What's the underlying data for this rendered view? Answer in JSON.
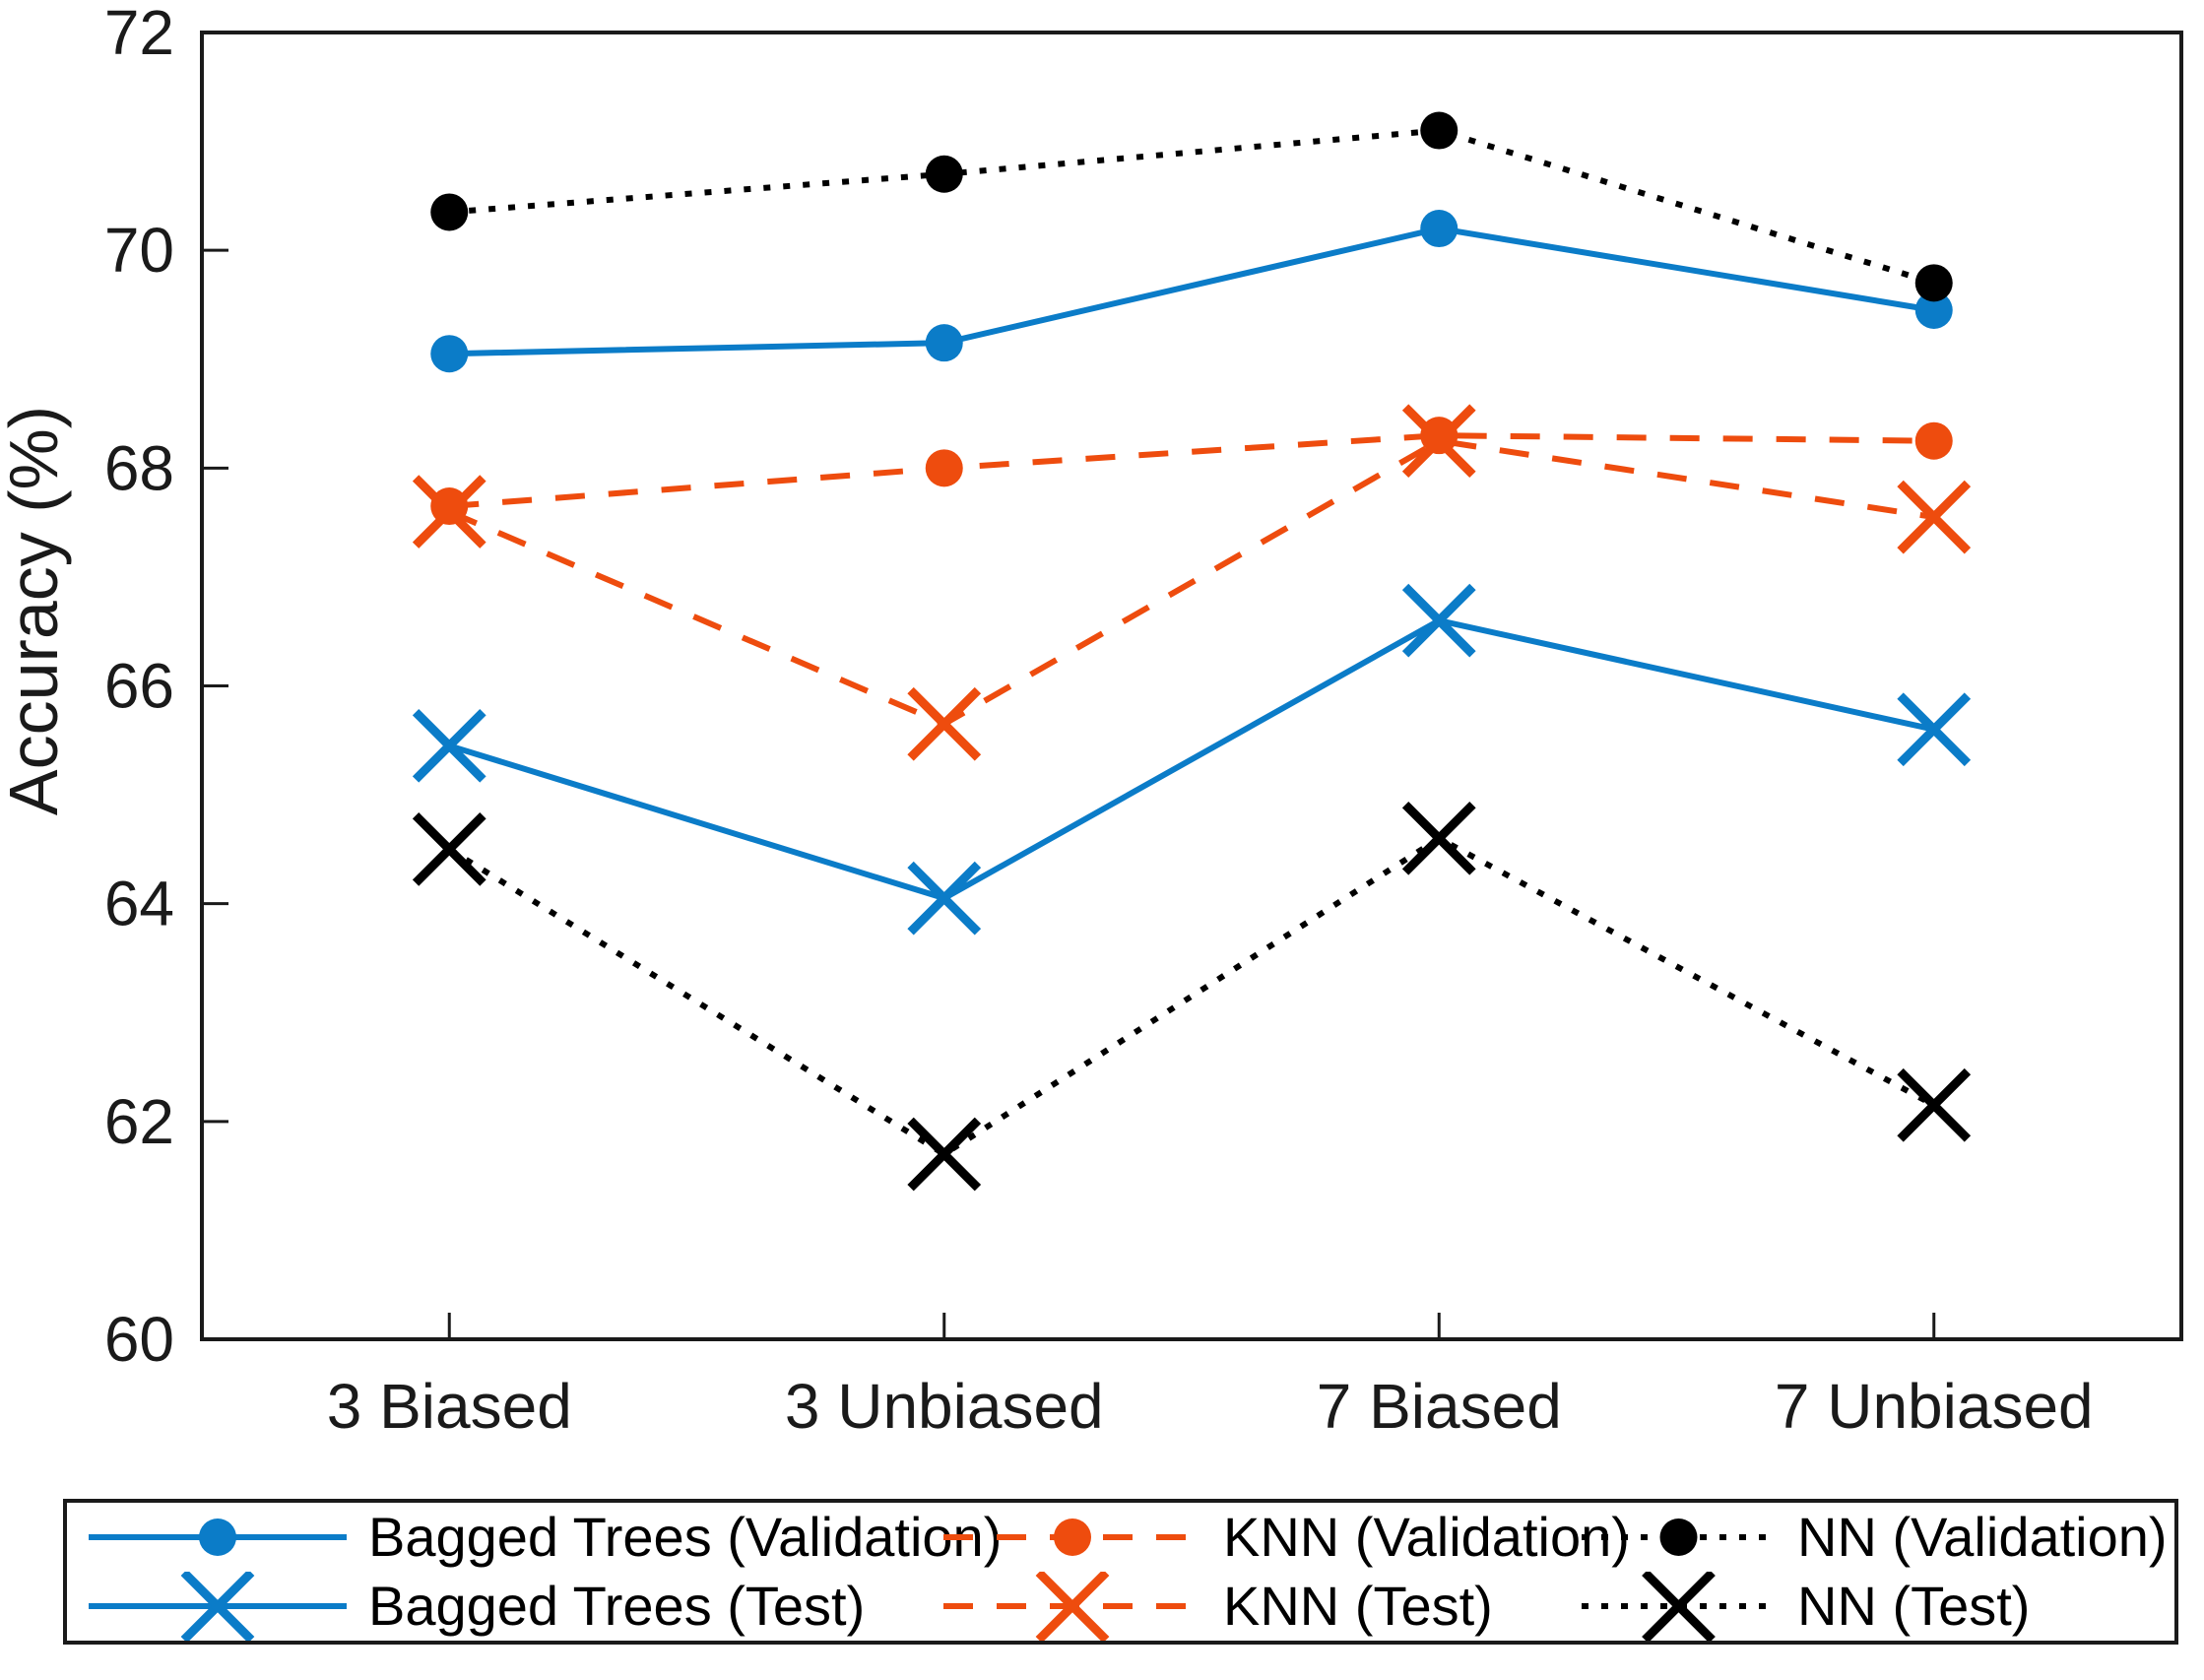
{
  "figure": {
    "background": "#ffffff",
    "axis_color": "#000000",
    "legend_position": "below"
  },
  "chart_data": {
    "type": "line",
    "title": "",
    "xlabel": "",
    "ylabel": "Accuracy (%)",
    "categories": [
      "3 Biased",
      "3 Unbiased",
      "7 Biased",
      "7 Unbiased"
    ],
    "ylim": [
      60,
      72
    ],
    "ytick_interval": 2,
    "ytick_labels": [
      "60",
      "62",
      "64",
      "66",
      "68",
      "70",
      "72"
    ],
    "grid": false,
    "legend_entries": [
      "Bagged Trees (Validation)",
      "Bagged Trees (Test)",
      "KNN (Validation)",
      "KNN (Test)",
      "NN (Validation)",
      "NN (Test)"
    ],
    "series": [
      {
        "name": "Bagged Trees (Validation)",
        "color": "#0b7cc8",
        "line_style": "solid",
        "marker": "circle",
        "values": [
          69.05,
          69.15,
          70.2,
          69.45
        ]
      },
      {
        "name": "Bagged Trees (Test)",
        "color": "#0b7cc8",
        "line_style": "solid",
        "marker": "x",
        "values": [
          65.45,
          64.05,
          66.6,
          65.6
        ]
      },
      {
        "name": "KNN (Validation)",
        "color": "#ee4c0e",
        "line_style": "dashed",
        "marker": "circle",
        "values": [
          67.65,
          68.0,
          68.3,
          68.25
        ]
      },
      {
        "name": "KNN (Test)",
        "color": "#ee4c0e",
        "line_style": "dashed",
        "marker": "x",
        "values": [
          67.6,
          65.65,
          68.25,
          67.55
        ]
      },
      {
        "name": "NN (Validation)",
        "color": "#000000",
        "line_style": "dotted",
        "marker": "circle",
        "values": [
          70.35,
          70.7,
          71.1,
          69.7
        ]
      },
      {
        "name": "NN (Test)",
        "color": "#000000",
        "line_style": "dotted",
        "marker": "x",
        "values": [
          64.5,
          61.7,
          64.6,
          62.15
        ]
      }
    ]
  }
}
